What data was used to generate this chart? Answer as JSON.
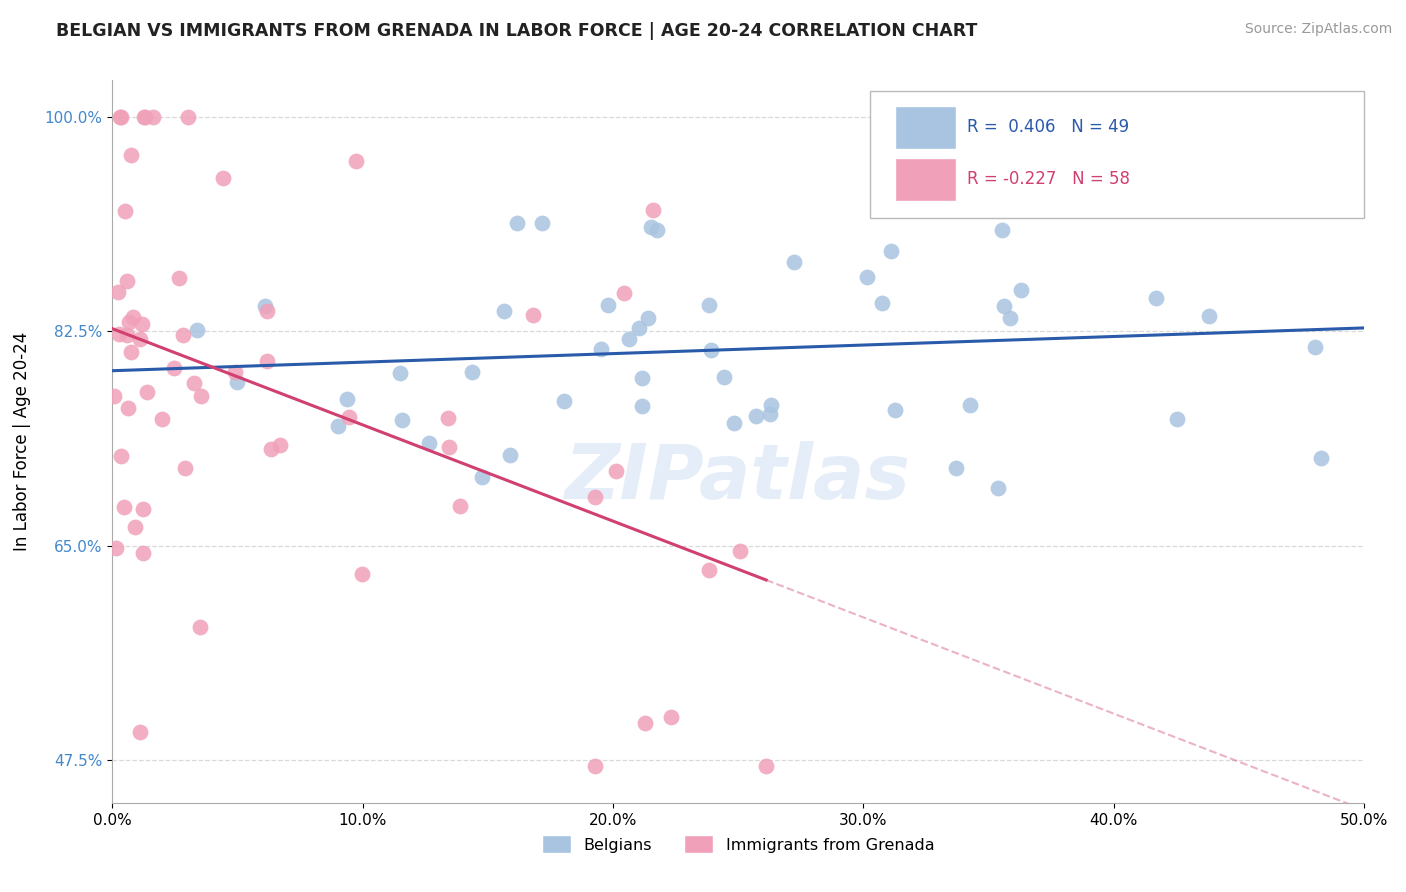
{
  "title": "BELGIAN VS IMMIGRANTS FROM GRENADA IN LABOR FORCE | AGE 20-24 CORRELATION CHART",
  "source": "Source: ZipAtlas.com",
  "ylabel": "In Labor Force | Age 20-24",
  "xlim": [
    0.0,
    50.0
  ],
  "ylim": [
    44.0,
    103.0
  ],
  "xticks": [
    0.0,
    10.0,
    20.0,
    30.0,
    40.0,
    50.0
  ],
  "xticklabels": [
    "0.0%",
    "10.0%",
    "20.0%",
    "30.0%",
    "40.0%",
    "50.0%"
  ],
  "ytick_vals": [
    47.5,
    65.0,
    82.5,
    100.0
  ],
  "yticklabels": [
    "47.5%",
    "65.0%",
    "82.5%",
    "100.0%"
  ],
  "r_belgian": 0.406,
  "n_belgian": 49,
  "r_grenada": -0.227,
  "n_grenada": 58,
  "belgian_color": "#a8c4e0",
  "grenada_color": "#f0a0b8",
  "trendline_belgian_color": "#2a5aaa",
  "trendline_grenada_color": "#d04070",
  "legend_belgian": "Belgians",
  "legend_grenada": "Immigrants from Grenada",
  "background_color": "#ffffff",
  "grid_color": "#d0d0d0",
  "watermark": "ZIPatlas",
  "title_color": "#222222",
  "source_color": "#999999",
  "yaxis_color": "#4488cc"
}
